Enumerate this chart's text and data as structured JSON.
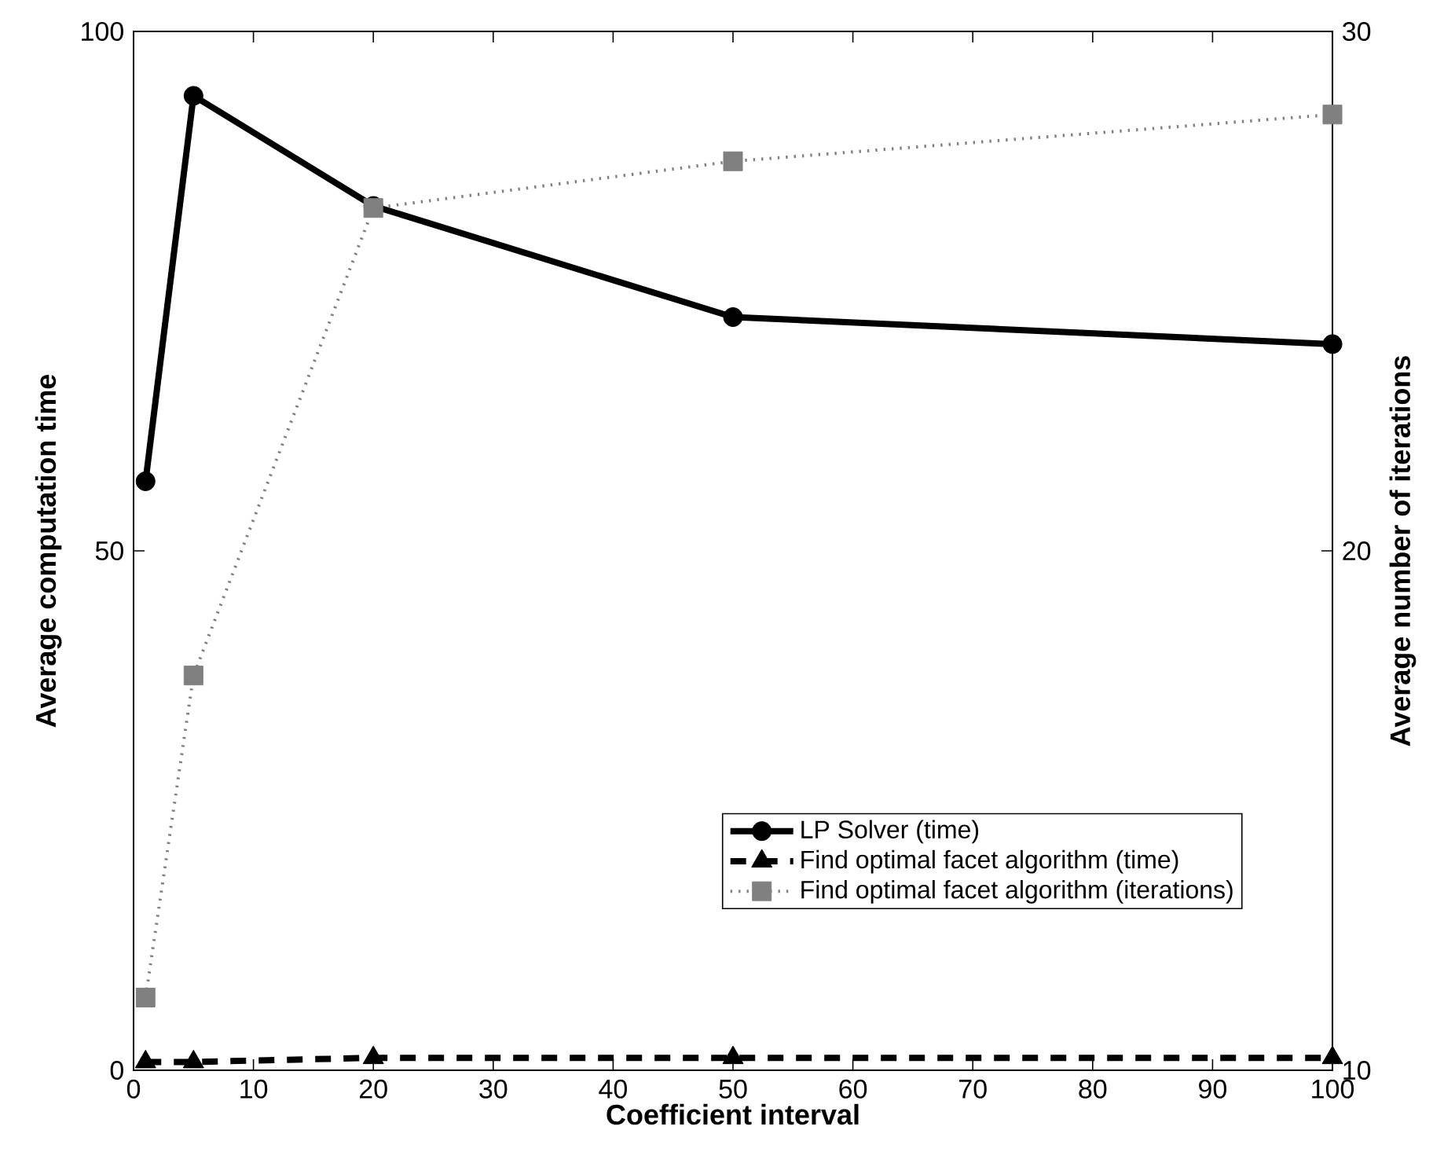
{
  "chart_data": {
    "type": "line",
    "xlabel": "Coefficient interval",
    "ylabel": "Average computation time",
    "y2label": "Average number of iterations",
    "x": [
      1,
      5,
      20,
      50,
      100
    ],
    "series": [
      {
        "name": "LP Solver (time)",
        "color": "#000000",
        "marker": "circle",
        "line_style": "solid",
        "values": [
          56.7,
          93.8,
          83.2,
          72.5,
          69.9
        ]
      },
      {
        "name": "Find optimal facet algorithm (time)",
        "color": "#000000",
        "marker": "triangle",
        "line_style": "dashed",
        "values": [
          0.8,
          0.8,
          1.2,
          1.2,
          1.2
        ]
      },
      {
        "name": "Find optimal facet algorithm (iterations)",
        "color": "#808080",
        "marker": "square",
        "line_style": "dotted",
        "axis": "y2",
        "values": [
          11.4,
          17.6,
          26.6,
          27.5,
          28.4
        ]
      }
    ],
    "xlim": [
      0,
      100
    ],
    "xticks": [
      0,
      10,
      20,
      30,
      40,
      50,
      60,
      70,
      80,
      90,
      100
    ],
    "ylim": [
      0,
      100
    ],
    "yticks": [
      0,
      50,
      100
    ],
    "y2lim": [
      10,
      30
    ],
    "y2ticks": [
      10,
      20,
      30
    ],
    "legend": "bottom right",
    "grid": false
  }
}
